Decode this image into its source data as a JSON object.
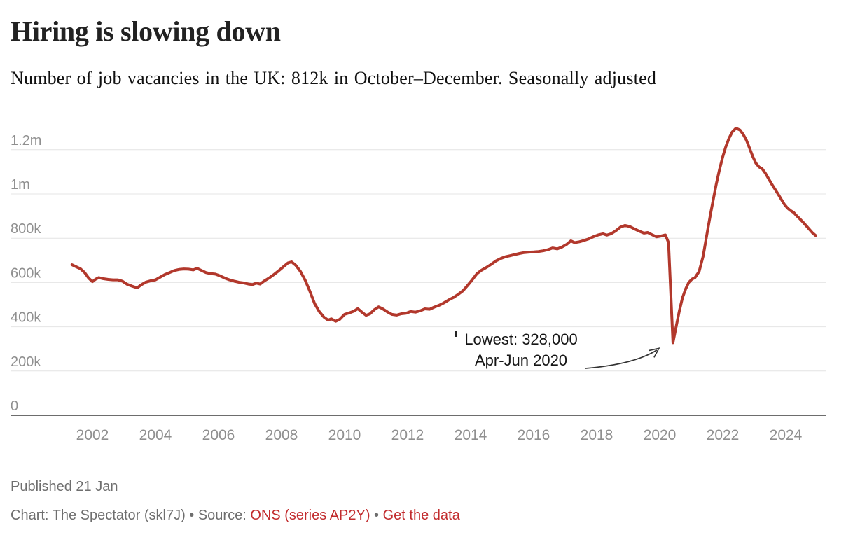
{
  "header": {
    "title": "Hiring is slowing down",
    "subtitle": "Number of job vacancies in the UK: 812k in October–December. Seasonally adjusted"
  },
  "chart_data": {
    "type": "line",
    "title": "Number of job vacancies in the UK",
    "xlabel": "",
    "ylabel": "job vacancies",
    "unit": "thousands",
    "xlim": [
      2001,
      2025.4
    ],
    "ylim": [
      0,
      1350
    ],
    "grid": "horizontal-only",
    "legend": "none",
    "x_ticks": [
      2002,
      2004,
      2006,
      2008,
      2010,
      2012,
      2014,
      2016,
      2018,
      2020,
      2022,
      2024
    ],
    "y_ticks": [
      {
        "value": 0,
        "label": "0"
      },
      {
        "value": 200,
        "label": "200k"
      },
      {
        "value": 400,
        "label": "400k"
      },
      {
        "value": 600,
        "label": "600k"
      },
      {
        "value": 800,
        "label": "800k"
      },
      {
        "value": 1000,
        "label": "1m"
      },
      {
        "value": 1200,
        "label": "1.2m"
      }
    ],
    "annotation": {
      "text_line1": "Lowest: 328,000",
      "text_line2": "Apr-Jun 2020",
      "points_to": {
        "year": 2020.42,
        "value": 328
      }
    },
    "latest": {
      "label": "812k in October–December",
      "value": 812
    },
    "series": [
      {
        "name": "Job vacancies (seasonally adjusted, thousands)",
        "color": "#b2382c",
        "points": [
          [
            2001.35,
            680
          ],
          [
            2001.5,
            670
          ],
          [
            2001.62,
            662
          ],
          [
            2001.75,
            645
          ],
          [
            2001.88,
            620
          ],
          [
            2002.0,
            604
          ],
          [
            2002.1,
            615
          ],
          [
            2002.2,
            622
          ],
          [
            2002.35,
            617
          ],
          [
            2002.5,
            614
          ],
          [
            2002.65,
            612
          ],
          [
            2002.8,
            612
          ],
          [
            2002.95,
            606
          ],
          [
            2003.1,
            592
          ],
          [
            2003.25,
            584
          ],
          [
            2003.42,
            576
          ],
          [
            2003.55,
            590
          ],
          [
            2003.7,
            602
          ],
          [
            2003.85,
            608
          ],
          [
            2004.0,
            612
          ],
          [
            2004.15,
            624
          ],
          [
            2004.3,
            636
          ],
          [
            2004.45,
            645
          ],
          [
            2004.6,
            654
          ],
          [
            2004.75,
            659
          ],
          [
            2004.9,
            661
          ],
          [
            2005.05,
            660
          ],
          [
            2005.2,
            657
          ],
          [
            2005.32,
            664
          ],
          [
            2005.45,
            655
          ],
          [
            2005.6,
            645
          ],
          [
            2005.75,
            640
          ],
          [
            2005.9,
            638
          ],
          [
            2006.05,
            630
          ],
          [
            2006.2,
            620
          ],
          [
            2006.35,
            612
          ],
          [
            2006.5,
            606
          ],
          [
            2006.65,
            601
          ],
          [
            2006.8,
            598
          ],
          [
            2006.95,
            593
          ],
          [
            2007.08,
            591
          ],
          [
            2007.2,
            597
          ],
          [
            2007.32,
            593
          ],
          [
            2007.45,
            607
          ],
          [
            2007.6,
            620
          ],
          [
            2007.75,
            635
          ],
          [
            2007.9,
            652
          ],
          [
            2008.05,
            670
          ],
          [
            2008.2,
            688
          ],
          [
            2008.32,
            693
          ],
          [
            2008.45,
            678
          ],
          [
            2008.6,
            650
          ],
          [
            2008.75,
            610
          ],
          [
            2008.9,
            560
          ],
          [
            2009.05,
            505
          ],
          [
            2009.2,
            468
          ],
          [
            2009.35,
            443
          ],
          [
            2009.48,
            430
          ],
          [
            2009.58,
            436
          ],
          [
            2009.72,
            425
          ],
          [
            2009.85,
            434
          ],
          [
            2010.0,
            456
          ],
          [
            2010.15,
            463
          ],
          [
            2010.3,
            471
          ],
          [
            2010.42,
            482
          ],
          [
            2010.55,
            466
          ],
          [
            2010.68,
            452
          ],
          [
            2010.8,
            458
          ],
          [
            2010.95,
            478
          ],
          [
            2011.08,
            490
          ],
          [
            2011.2,
            482
          ],
          [
            2011.35,
            468
          ],
          [
            2011.5,
            456
          ],
          [
            2011.65,
            453
          ],
          [
            2011.8,
            459
          ],
          [
            2011.95,
            461
          ],
          [
            2012.1,
            469
          ],
          [
            2012.25,
            466
          ],
          [
            2012.4,
            472
          ],
          [
            2012.55,
            481
          ],
          [
            2012.7,
            479
          ],
          [
            2012.85,
            489
          ],
          [
            2013.0,
            497
          ],
          [
            2013.15,
            508
          ],
          [
            2013.3,
            521
          ],
          [
            2013.45,
            532
          ],
          [
            2013.6,
            546
          ],
          [
            2013.75,
            562
          ],
          [
            2013.9,
            586
          ],
          [
            2014.05,
            612
          ],
          [
            2014.2,
            640
          ],
          [
            2014.35,
            656
          ],
          [
            2014.5,
            668
          ],
          [
            2014.65,
            682
          ],
          [
            2014.8,
            697
          ],
          [
            2014.95,
            708
          ],
          [
            2015.1,
            716
          ],
          [
            2015.25,
            721
          ],
          [
            2015.4,
            726
          ],
          [
            2015.55,
            731
          ],
          [
            2015.7,
            735
          ],
          [
            2015.85,
            737
          ],
          [
            2016.0,
            738
          ],
          [
            2016.15,
            740
          ],
          [
            2016.3,
            743
          ],
          [
            2016.45,
            748
          ],
          [
            2016.6,
            756
          ],
          [
            2016.75,
            752
          ],
          [
            2016.9,
            760
          ],
          [
            2017.05,
            772
          ],
          [
            2017.18,
            788
          ],
          [
            2017.3,
            780
          ],
          [
            2017.45,
            784
          ],
          [
            2017.6,
            790
          ],
          [
            2017.75,
            797
          ],
          [
            2017.9,
            807
          ],
          [
            2018.05,
            815
          ],
          [
            2018.2,
            820
          ],
          [
            2018.32,
            814
          ],
          [
            2018.45,
            820
          ],
          [
            2018.6,
            833
          ],
          [
            2018.75,
            850
          ],
          [
            2018.9,
            858
          ],
          [
            2019.05,
            853
          ],
          [
            2019.2,
            842
          ],
          [
            2019.35,
            832
          ],
          [
            2019.5,
            823
          ],
          [
            2019.62,
            826
          ],
          [
            2019.75,
            816
          ],
          [
            2019.9,
            806
          ],
          [
            2020.05,
            810
          ],
          [
            2020.18,
            815
          ],
          [
            2020.28,
            780
          ],
          [
            2020.42,
            328
          ],
          [
            2020.52,
            400
          ],
          [
            2020.62,
            470
          ],
          [
            2020.72,
            530
          ],
          [
            2020.82,
            570
          ],
          [
            2020.92,
            600
          ],
          [
            2021.02,
            615
          ],
          [
            2021.12,
            622
          ],
          [
            2021.25,
            650
          ],
          [
            2021.38,
            720
          ],
          [
            2021.5,
            820
          ],
          [
            2021.6,
            900
          ],
          [
            2021.7,
            975
          ],
          [
            2021.8,
            1048
          ],
          [
            2021.9,
            1112
          ],
          [
            2022.0,
            1168
          ],
          [
            2022.1,
            1215
          ],
          [
            2022.2,
            1252
          ],
          [
            2022.3,
            1280
          ],
          [
            2022.42,
            1297
          ],
          [
            2022.55,
            1289
          ],
          [
            2022.65,
            1269
          ],
          [
            2022.75,
            1243
          ],
          [
            2022.85,
            1208
          ],
          [
            2022.95,
            1170
          ],
          [
            2023.05,
            1140
          ],
          [
            2023.15,
            1122
          ],
          [
            2023.25,
            1114
          ],
          [
            2023.35,
            1095
          ],
          [
            2023.45,
            1070
          ],
          [
            2023.55,
            1046
          ],
          [
            2023.65,
            1023
          ],
          [
            2023.75,
            1001
          ],
          [
            2023.85,
            978
          ],
          [
            2023.95,
            954
          ],
          [
            2024.05,
            937
          ],
          [
            2024.15,
            925
          ],
          [
            2024.25,
            916
          ],
          [
            2024.35,
            901
          ],
          [
            2024.45,
            887
          ],
          [
            2024.55,
            872
          ],
          [
            2024.65,
            856
          ],
          [
            2024.75,
            840
          ],
          [
            2024.85,
            824
          ],
          [
            2024.95,
            812
          ]
        ]
      }
    ]
  },
  "footer": {
    "published": "Published 21 Jan",
    "credit_prefix": "Chart: The Spectator (skl7J) • Source: ",
    "source_link": "ONS (series AP2Y)",
    "separator": " • ",
    "data_link": "Get the data"
  },
  "colors": {
    "line": "#b2382c",
    "link": "#c22c2e",
    "title_text": "#222222",
    "subtitle_text": "#111111",
    "tick": "#8f8f8f",
    "grid": "#e4e4e4",
    "axis": "#3d3d3d",
    "annotation_text": "#151515",
    "arrow": "#333333",
    "footer_gray": "#6e6e6e",
    "background": "#ffffff"
  }
}
